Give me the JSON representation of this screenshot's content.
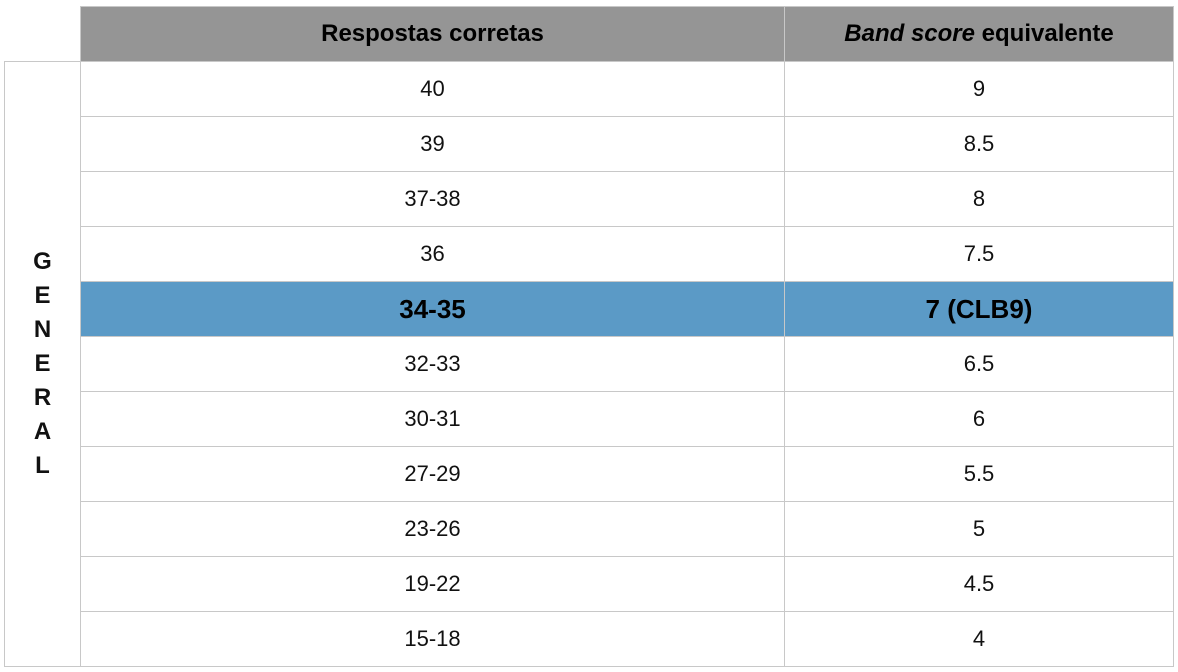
{
  "side_label": "GENERAL",
  "header": {
    "col1": "Respostas corretas",
    "col2_italic": "Band score",
    "col2_rest": " equivalente"
  },
  "rows": [
    {
      "correct": "40",
      "band": "9"
    },
    {
      "correct": "39",
      "band": "8.5"
    },
    {
      "correct": "37-38",
      "band": "8"
    },
    {
      "correct": "36",
      "band": "7.5"
    },
    {
      "correct": "34-35",
      "band": "7 (CLB9)",
      "highlighted": true
    },
    {
      "correct": "32-33",
      "band": "6.5"
    },
    {
      "correct": "30-31",
      "band": "6"
    },
    {
      "correct": "27-29",
      "band": "5.5"
    },
    {
      "correct": "23-26",
      "band": "5"
    },
    {
      "correct": "19-22",
      "band": "4.5"
    },
    {
      "correct": "15-18",
      "band": "4"
    }
  ],
  "colors": {
    "header_bg": "#959595",
    "highlight_bg": "#5b9ac6",
    "border": "#c8c8c8"
  }
}
